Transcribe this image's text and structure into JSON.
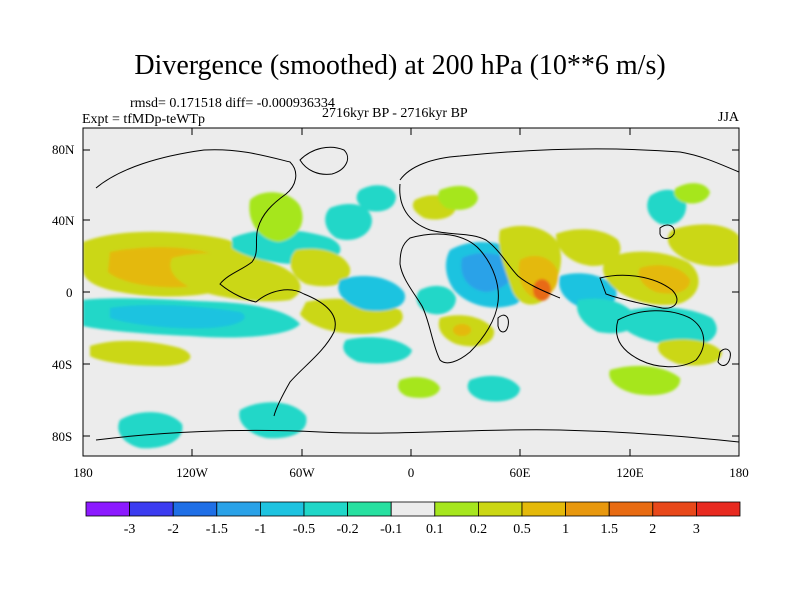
{
  "title": "Divergence (smoothed) at 200 hPa (10**6 m/s)",
  "stats": "rmsd= 0.171518 diff= -0.000936334",
  "experiment": "Expt = tfMDp-teWTp",
  "period": "2716kyr BP - 2716kyr BP",
  "season": "JJA",
  "map": {
    "projection": "cylindrical equidistant",
    "lon_range": [
      -180,
      180
    ],
    "lat_range": [
      -90,
      90
    ],
    "background_color": "#ececec",
    "lat_ticks": [
      "80N",
      "40N",
      "0",
      "40S",
      "80S"
    ],
    "lon_ticks": [
      "180",
      "120W",
      "60W",
      "0",
      "60E",
      "120E",
      "180"
    ]
  },
  "colorbar": {
    "colors": [
      "#8c1aff",
      "#3c3cf0",
      "#1f6fe6",
      "#2aa2e8",
      "#1ec3e0",
      "#20d7c8",
      "#27e0a0",
      "#ececec",
      "#a6e61e",
      "#cbd714",
      "#e4b90a",
      "#e8980e",
      "#e86b12",
      "#e8481a",
      "#e82a20"
    ],
    "labels": [
      "-3",
      "-2",
      "-1.5",
      "-1",
      "-0.5",
      "-0.2",
      "-0.1",
      "0.1",
      "0.2",
      "0.5",
      "1",
      "1.5",
      "2",
      "3"
    ]
  }
}
